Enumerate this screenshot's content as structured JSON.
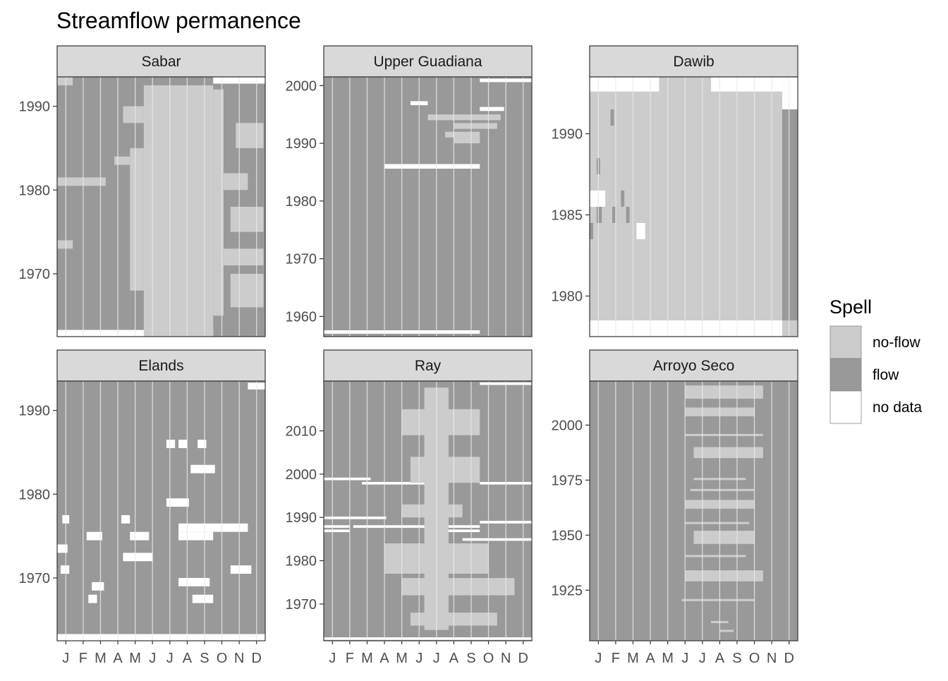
{
  "colors": {
    "noflow": "#cccccc",
    "flow": "#999999",
    "nodata": "#ffffff",
    "strip": "#d9d9d9",
    "border": "#333333",
    "grid": "#ebebeb"
  },
  "chart_data": {
    "type": "heatmap",
    "title": "Streamflow permanence",
    "month_labels": [
      "J",
      "F",
      "M",
      "A",
      "M",
      "J",
      "J",
      "A",
      "S",
      "O",
      "N",
      "D"
    ],
    "legend": {
      "title": "Spell",
      "items": [
        {
          "key": "noflow",
          "label": "no-flow"
        },
        {
          "key": "flow",
          "label": "flow"
        },
        {
          "key": "nodata",
          "label": "no data"
        }
      ]
    },
    "panels": [
      {
        "name": "Sabar",
        "base": "flow",
        "ylim": [
          1962.5,
          1993.5
        ],
        "yticks": [
          1970,
          1980,
          1990
        ],
        "blocks": [
          {
            "spell": "nodata",
            "y0": 1962.5,
            "y1": 1963.3,
            "m0": 0,
            "m1": 9
          },
          {
            "spell": "noflow",
            "y0": 1962.5,
            "y1": 1992.5,
            "m0": 5,
            "m1": 9
          },
          {
            "spell": "noflow",
            "y0": 1965,
            "y1": 1992,
            "m0": 9,
            "m1": 9.6
          },
          {
            "spell": "noflow",
            "y0": 1966,
            "y1": 1970,
            "m0": 10,
            "m1": 11.9
          },
          {
            "spell": "noflow",
            "y0": 1971,
            "y1": 1973,
            "m0": 9.6,
            "m1": 11.9
          },
          {
            "spell": "noflow",
            "y0": 1975,
            "y1": 1978,
            "m0": 10,
            "m1": 11.9
          },
          {
            "spell": "noflow",
            "y0": 1980,
            "y1": 1982,
            "m0": 9.3,
            "m1": 11
          },
          {
            "spell": "noflow",
            "y0": 1985,
            "y1": 1988,
            "m0": 10.3,
            "m1": 11.9
          },
          {
            "spell": "noflow",
            "y0": 1968,
            "y1": 1985,
            "m0": 4.2,
            "m1": 5
          },
          {
            "spell": "noflow",
            "y0": 1980.5,
            "y1": 1981.5,
            "m0": 0,
            "m1": 2.8
          },
          {
            "spell": "noflow",
            "y0": 1973,
            "y1": 1974,
            "m0": 0,
            "m1": 0.9
          },
          {
            "spell": "noflow",
            "y0": 1983,
            "y1": 1984,
            "m0": 3.3,
            "m1": 4.2
          },
          {
            "spell": "noflow",
            "y0": 1988,
            "y1": 1990,
            "m0": 3.8,
            "m1": 5
          },
          {
            "spell": "nodata",
            "y0": 1992.7,
            "y1": 1993.5,
            "m0": 9,
            "m1": 12
          },
          {
            "spell": "noflow",
            "y0": 1992.5,
            "y1": 1993.5,
            "m0": 0,
            "m1": 0.9
          }
        ]
      },
      {
        "name": "Upper Guadiana",
        "base": "flow",
        "ylim": [
          1956.5,
          2001.5
        ],
        "yticks": [
          1960,
          1970,
          1980,
          1990,
          2000
        ],
        "blocks": [
          {
            "spell": "nodata",
            "y0": 1957,
            "y1": 1957.6,
            "m0": 0,
            "m1": 9
          },
          {
            "spell": "nodata",
            "y0": 1985.6,
            "y1": 1986.4,
            "m0": 3.5,
            "m1": 9
          },
          {
            "spell": "nodata",
            "y0": 1996.6,
            "y1": 1997.3,
            "m0": 5,
            "m1": 6
          },
          {
            "spell": "nodata",
            "y0": 1995.6,
            "y1": 1996.3,
            "m0": 9,
            "m1": 10.4
          },
          {
            "spell": "nodata",
            "y0": 2000.6,
            "y1": 2001.2,
            "m0": 9,
            "m1": 12
          },
          {
            "spell": "noflow",
            "y0": 1994,
            "y1": 1995,
            "m0": 6,
            "m1": 10.2
          },
          {
            "spell": "noflow",
            "y0": 1992.5,
            "y1": 1993.5,
            "m0": 7.5,
            "m1": 10
          },
          {
            "spell": "noflow",
            "y0": 1991,
            "y1": 1992,
            "m0": 7,
            "m1": 9
          },
          {
            "spell": "noflow",
            "y0": 1990,
            "y1": 1991,
            "m0": 7.5,
            "m1": 9
          }
        ]
      },
      {
        "name": "Dawib",
        "base": "noflow",
        "ylim": [
          1977.5,
          1993.5
        ],
        "yticks": [
          1980,
          1985,
          1990
        ],
        "blocks": [
          {
            "spell": "flow",
            "y0": 1978.5,
            "y1": 1992.6,
            "m0": 11.1,
            "m1": 12
          },
          {
            "spell": "nodata",
            "y0": 1977.5,
            "y1": 1978.5,
            "m0": 0,
            "m1": 11.1
          },
          {
            "spell": "nodata",
            "y0": 1992.6,
            "y1": 1993.5,
            "m0": 0,
            "m1": 4
          },
          {
            "spell": "nodata",
            "y0": 1992.6,
            "y1": 1993.5,
            "m0": 7,
            "m1": 11.1
          },
          {
            "spell": "nodata",
            "y0": 1991.5,
            "y1": 1993.5,
            "m0": 11.1,
            "m1": 12
          },
          {
            "spell": "nodata",
            "y0": 1985.5,
            "y1": 1986.5,
            "m0": 0,
            "m1": 0.9
          },
          {
            "spell": "nodata",
            "y0": 1983.5,
            "y1": 1984.5,
            "m0": 2.7,
            "m1": 3.2
          },
          {
            "spell": "flow",
            "y0": 1984.5,
            "y1": 1985.5,
            "m0": 0.4,
            "m1": 0.7
          },
          {
            "spell": "flow",
            "y0": 1984.5,
            "y1": 1985.5,
            "m0": 1.3,
            "m1": 1.5
          },
          {
            "spell": "flow",
            "y0": 1984.5,
            "y1": 1985.5,
            "m0": 2.1,
            "m1": 2.3
          },
          {
            "spell": "flow",
            "y0": 1987.5,
            "y1": 1988.5,
            "m0": 0.4,
            "m1": 0.6
          },
          {
            "spell": "flow",
            "y0": 1990.5,
            "y1": 1991.5,
            "m0": 1.2,
            "m1": 1.4
          },
          {
            "spell": "flow",
            "y0": 1983.5,
            "y1": 1984.5,
            "m0": 0,
            "m1": 0.2
          },
          {
            "spell": "flow",
            "y0": 1985.5,
            "y1": 1986.5,
            "m0": 1.8,
            "m1": 2
          }
        ]
      },
      {
        "name": "Elands",
        "base": "flow",
        "ylim": [
          1962.5,
          1993.5
        ],
        "yticks": [
          1970,
          1980,
          1990
        ],
        "blocks": [
          {
            "spell": "nodata",
            "y0": 1962.5,
            "y1": 1963.3,
            "m0": 0,
            "m1": 12
          },
          {
            "spell": "nodata",
            "y0": 1992.5,
            "y1": 1993.3,
            "m0": 11,
            "m1": 12
          },
          {
            "spell": "nodata",
            "y0": 1975.5,
            "y1": 1976.5,
            "m0": 7,
            "m1": 11
          },
          {
            "spell": "nodata",
            "y0": 1974.5,
            "y1": 1975.5,
            "m0": 7,
            "m1": 9
          },
          {
            "spell": "nodata",
            "y0": 1972,
            "y1": 1973,
            "m0": 3.8,
            "m1": 5.5
          },
          {
            "spell": "nodata",
            "y0": 1978.5,
            "y1": 1979.5,
            "m0": 6.3,
            "m1": 7.6
          },
          {
            "spell": "nodata",
            "y0": 1985.5,
            "y1": 1986.5,
            "m0": 6.3,
            "m1": 6.8
          },
          {
            "spell": "nodata",
            "y0": 1985.5,
            "y1": 1986.5,
            "m0": 7,
            "m1": 7.5
          },
          {
            "spell": "nodata",
            "y0": 1985.5,
            "y1": 1986.5,
            "m0": 8.1,
            "m1": 8.6
          },
          {
            "spell": "nodata",
            "y0": 1982.5,
            "y1": 1983.5,
            "m0": 7.7,
            "m1": 9.1
          },
          {
            "spell": "nodata",
            "y0": 1970.5,
            "y1": 1971.5,
            "m0": 10,
            "m1": 11.2
          },
          {
            "spell": "nodata",
            "y0": 1969,
            "y1": 1970,
            "m0": 7,
            "m1": 8.8
          },
          {
            "spell": "nodata",
            "y0": 1967,
            "y1": 1968,
            "m0": 7.8,
            "m1": 9
          },
          {
            "spell": "nodata",
            "y0": 1968.5,
            "y1": 1969.5,
            "m0": 2,
            "m1": 2.7
          },
          {
            "spell": "nodata",
            "y0": 1967,
            "y1": 1968,
            "m0": 1.8,
            "m1": 2.3
          },
          {
            "spell": "nodata",
            "y0": 1974.5,
            "y1": 1975.5,
            "m0": 1.7,
            "m1": 2.6
          },
          {
            "spell": "nodata",
            "y0": 1974.5,
            "y1": 1975.5,
            "m0": 4.2,
            "m1": 5.3
          },
          {
            "spell": "nodata",
            "y0": 1973,
            "y1": 1974,
            "m0": 0,
            "m1": 0.6
          },
          {
            "spell": "nodata",
            "y0": 1970.5,
            "y1": 1971.5,
            "m0": 0.2,
            "m1": 0.7
          },
          {
            "spell": "nodata",
            "y0": 1976.5,
            "y1": 1977.5,
            "m0": 0.3,
            "m1": 0.7
          },
          {
            "spell": "nodata",
            "y0": 1976.5,
            "y1": 1977.5,
            "m0": 3.7,
            "m1": 4.2
          }
        ]
      },
      {
        "name": "Ray",
        "base": "flow",
        "ylim": [
          1961.5,
          2021.5
        ],
        "yticks": [
          1970,
          1980,
          1990,
          2000,
          2010
        ],
        "blocks": [
          {
            "spell": "nodata",
            "y0": 1961.7,
            "y1": 1962.3,
            "m0": 0,
            "m1": 12
          },
          {
            "spell": "nodata",
            "y0": 2020.6,
            "y1": 2021.2,
            "m0": 9,
            "m1": 12
          },
          {
            "spell": "nodata",
            "y0": 1998.6,
            "y1": 1999.2,
            "m0": 0,
            "m1": 2.7
          },
          {
            "spell": "nodata",
            "y0": 1997.6,
            "y1": 1998.2,
            "m0": 2.2,
            "m1": 6.3
          },
          {
            "spell": "nodata",
            "y0": 1997.6,
            "y1": 1998.2,
            "m0": 9,
            "m1": 12
          },
          {
            "spell": "nodata",
            "y0": 1989.6,
            "y1": 1990.2,
            "m0": 0,
            "m1": 3.6
          },
          {
            "spell": "nodata",
            "y0": 1988.6,
            "y1": 1989.2,
            "m0": 9,
            "m1": 12
          },
          {
            "spell": "nodata",
            "y0": 1987.6,
            "y1": 1988.2,
            "m0": 0,
            "m1": 1.5
          },
          {
            "spell": "nodata",
            "y0": 1987.6,
            "y1": 1988.2,
            "m0": 1.7,
            "m1": 9
          },
          {
            "spell": "nodata",
            "y0": 1986.6,
            "y1": 1987.2,
            "m0": 0,
            "m1": 1.5
          },
          {
            "spell": "nodata",
            "y0": 1986.6,
            "y1": 1987.2,
            "m0": 7,
            "m1": 9
          },
          {
            "spell": "nodata",
            "y0": 1984.6,
            "y1": 1985.2,
            "m0": 8,
            "m1": 12
          },
          {
            "spell": "nodata",
            "y0": 1981.6,
            "y1": 1982.2,
            "m0": 5.5,
            "m1": 7
          },
          {
            "spell": "noflow",
            "y0": 1964,
            "y1": 2020,
            "m0": 5.8,
            "m1": 7.2
          },
          {
            "spell": "noflow",
            "y0": 2009,
            "y1": 2015,
            "m0": 4.5,
            "m1": 9
          },
          {
            "spell": "noflow",
            "y0": 1998,
            "y1": 2004,
            "m0": 5,
            "m1": 9
          },
          {
            "spell": "noflow",
            "y0": 1990,
            "y1": 1993,
            "m0": 4.5,
            "m1": 8
          },
          {
            "spell": "noflow",
            "y0": 1977,
            "y1": 1984,
            "m0": 3.5,
            "m1": 9.5
          },
          {
            "spell": "noflow",
            "y0": 1972,
            "y1": 1976,
            "m0": 4.5,
            "m1": 11
          },
          {
            "spell": "noflow",
            "y0": 1965,
            "y1": 1968,
            "m0": 5,
            "m1": 10
          }
        ]
      },
      {
        "name": "Arroyo Seco",
        "base": "flow",
        "ylim": [
          1902,
          2020
        ],
        "yticks": [
          1925,
          1950,
          1975,
          2000
        ],
        "blocks": [
          {
            "spell": "noflow",
            "y0": 2012,
            "y1": 2018,
            "m0": 5.5,
            "m1": 10
          },
          {
            "spell": "noflow",
            "y0": 2004,
            "y1": 2008,
            "m0": 5.5,
            "m1": 9.5
          },
          {
            "spell": "noflow",
            "y0": 1985,
            "y1": 1990,
            "m0": 6,
            "m1": 10
          },
          {
            "spell": "noflow",
            "y0": 1962,
            "y1": 1966,
            "m0": 5.5,
            "m1": 9.5
          },
          {
            "spell": "noflow",
            "y0": 1946,
            "y1": 1952,
            "m0": 6,
            "m1": 9.5
          },
          {
            "spell": "noflow",
            "y0": 1929,
            "y1": 1934,
            "m0": 5.5,
            "m1": 10
          },
          {
            "spell": "noflow",
            "y0": 1975,
            "y1": 1976,
            "m0": 6,
            "m1": 9
          },
          {
            "spell": "noflow",
            "y0": 1970,
            "y1": 1971,
            "m0": 5.8,
            "m1": 9.5
          },
          {
            "spell": "noflow",
            "y0": 1955,
            "y1": 1956,
            "m0": 5.5,
            "m1": 9.2
          },
          {
            "spell": "noflow",
            "y0": 1940,
            "y1": 1941,
            "m0": 5.5,
            "m1": 9
          },
          {
            "spell": "noflow",
            "y0": 1920,
            "y1": 1921,
            "m0": 5.3,
            "m1": 9.5
          },
          {
            "spell": "noflow",
            "y0": 1995,
            "y1": 1996,
            "m0": 5.5,
            "m1": 10
          },
          {
            "spell": "noflow",
            "y0": 1910,
            "y1": 1911,
            "m0": 7,
            "m1": 8
          },
          {
            "spell": "noflow",
            "y0": 1906,
            "y1": 1907,
            "m0": 7.5,
            "m1": 8.3
          }
        ]
      }
    ]
  }
}
